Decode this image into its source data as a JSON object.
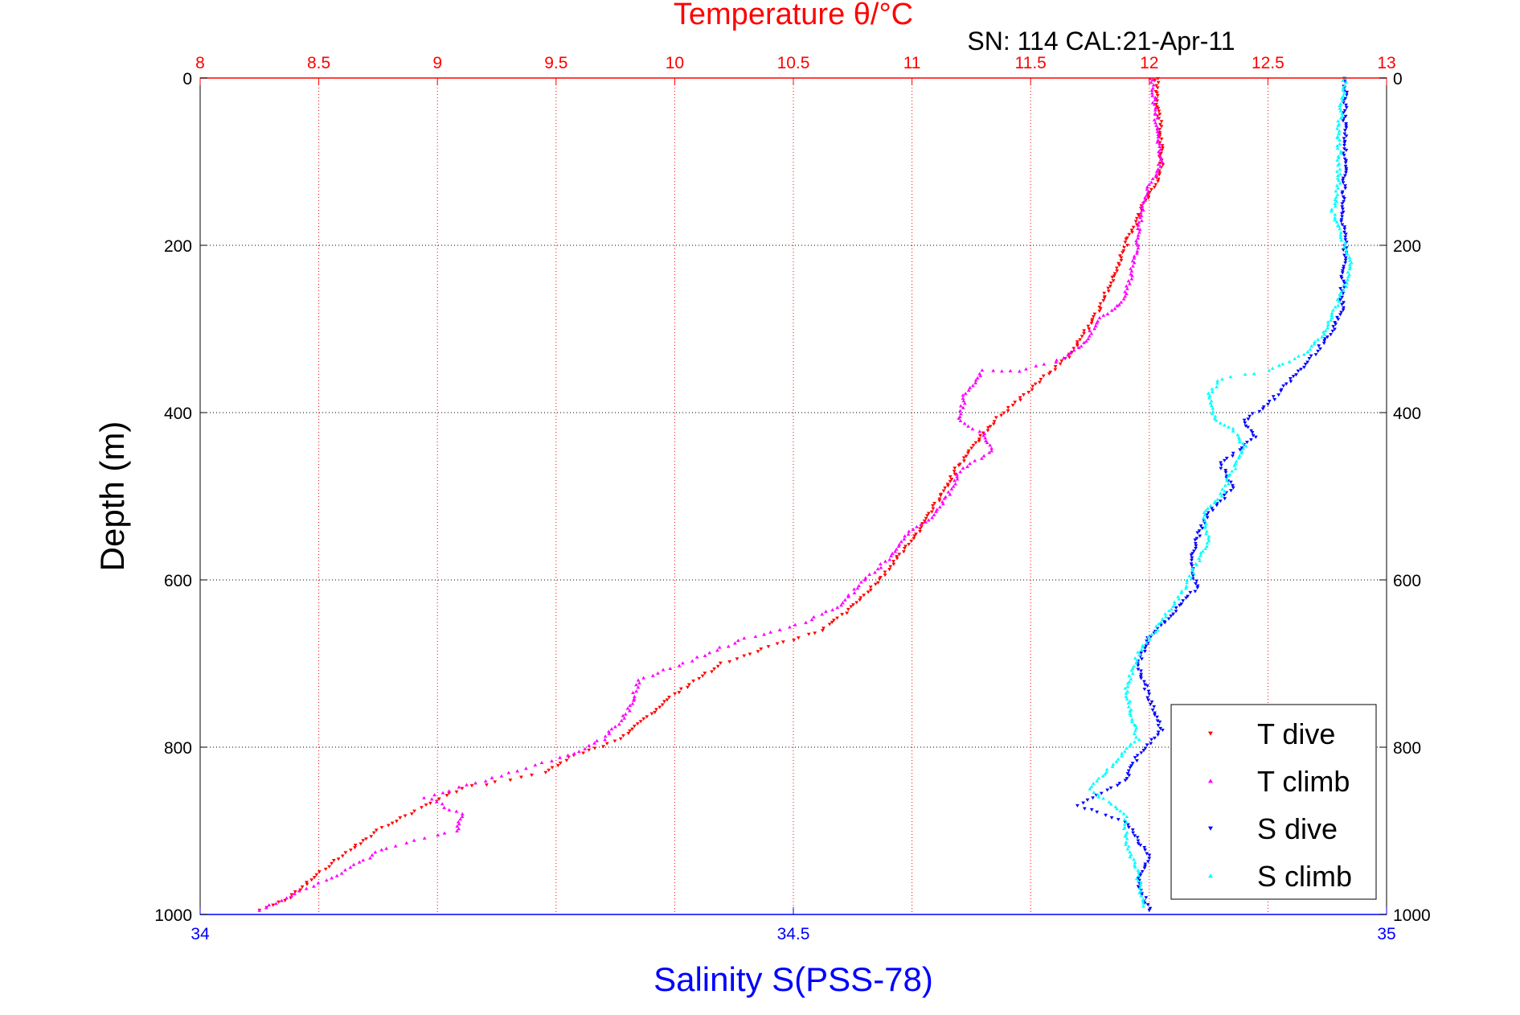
{
  "chart_data": {
    "type": "scatter",
    "title": "Temperature θ/°C",
    "subtitle": "SN: 114  CAL:21-Apr-11",
    "ylabel": "Depth (m)",
    "xlabel": "Salinity S(PSS-78)",
    "ylim": [
      0,
      1000
    ],
    "y_reversed": true,
    "grid": true,
    "legend_position": "bottom-right",
    "axes": {
      "temperature": {
        "label": "Temperature θ/°C",
        "position": "top",
        "range": [
          8,
          13
        ],
        "ticks": [
          "8",
          "8.5",
          "9",
          "9.5",
          "10",
          "10.5",
          "11",
          "11.5",
          "12",
          "12.5",
          "13"
        ],
        "color": "#ff0000"
      },
      "salinity": {
        "label": "Salinity S(PSS-78)",
        "position": "bottom",
        "range": [
          34,
          35
        ],
        "ticks": [
          "34",
          "34.5",
          "35"
        ],
        "color": "#0000ff"
      },
      "depth": {
        "label": "Depth (m)",
        "range": [
          0,
          1000
        ],
        "ticks": [
          "0",
          "200",
          "400",
          "600",
          "800",
          "1000"
        ],
        "color": "#000000"
      }
    },
    "series": [
      {
        "name": "T dive",
        "axis": "temperature",
        "color": "#ff0000",
        "marker": "down-triangle",
        "points": [
          [
            12.03,
            0
          ],
          [
            12.04,
            40
          ],
          [
            12.05,
            80
          ],
          [
            12.05,
            110
          ],
          [
            12.02,
            130
          ],
          [
            11.98,
            150
          ],
          [
            11.94,
            175
          ],
          [
            11.9,
            200
          ],
          [
            11.86,
            230
          ],
          [
            11.8,
            270
          ],
          [
            11.74,
            300
          ],
          [
            11.67,
            330
          ],
          [
            11.55,
            360
          ],
          [
            11.45,
            385
          ],
          [
            11.35,
            410
          ],
          [
            11.26,
            440
          ],
          [
            11.18,
            470
          ],
          [
            11.12,
            500
          ],
          [
            11.06,
            530
          ],
          [
            10.98,
            560
          ],
          [
            10.86,
            600
          ],
          [
            10.76,
            630
          ],
          [
            10.62,
            660
          ],
          [
            10.4,
            680
          ],
          [
            10.2,
            700
          ],
          [
            9.98,
            740
          ],
          [
            9.86,
            770
          ],
          [
            9.78,
            790
          ],
          [
            9.58,
            810
          ],
          [
            9.45,
            830
          ],
          [
            9.1,
            850
          ],
          [
            8.95,
            870
          ],
          [
            8.75,
            900
          ],
          [
            8.6,
            930
          ],
          [
            8.48,
            955
          ],
          [
            8.38,
            980
          ],
          [
            8.25,
            995
          ]
        ]
      },
      {
        "name": "T climb",
        "axis": "temperature",
        "color": "#ff00ff",
        "marker": "up-triangle",
        "points": [
          [
            12.01,
            0
          ],
          [
            12.03,
            50
          ],
          [
            12.05,
            100
          ],
          [
            12.0,
            130
          ],
          [
            11.97,
            155
          ],
          [
            11.95,
            200
          ],
          [
            11.92,
            240
          ],
          [
            11.88,
            270
          ],
          [
            11.78,
            290
          ],
          [
            11.72,
            320
          ],
          [
            11.6,
            340
          ],
          [
            11.45,
            350
          ],
          [
            11.3,
            350
          ],
          [
            11.22,
            380
          ],
          [
            11.2,
            410
          ],
          [
            11.3,
            425
          ],
          [
            11.34,
            445
          ],
          [
            11.2,
            470
          ],
          [
            11.15,
            500
          ],
          [
            11.08,
            525
          ],
          [
            10.98,
            545
          ],
          [
            10.9,
            575
          ],
          [
            10.8,
            600
          ],
          [
            10.7,
            630
          ],
          [
            10.55,
            650
          ],
          [
            10.3,
            670
          ],
          [
            10.12,
            690
          ],
          [
            9.85,
            720
          ],
          [
            9.8,
            760
          ],
          [
            9.7,
            790
          ],
          [
            9.55,
            810
          ],
          [
            9.2,
            840
          ],
          [
            8.95,
            860
          ],
          [
            9.1,
            880
          ],
          [
            9.08,
            900
          ],
          [
            8.78,
            920
          ],
          [
            8.6,
            950
          ],
          [
            8.4,
            975
          ],
          [
            8.25,
            995
          ]
        ]
      },
      {
        "name": "S dive",
        "axis": "salinity",
        "color": "#0000ff",
        "marker": "down-triangle",
        "points": [
          [
            34.965,
            0
          ],
          [
            34.965,
            60
          ],
          [
            34.965,
            120
          ],
          [
            34.962,
            160
          ],
          [
            34.965,
            200
          ],
          [
            34.963,
            240
          ],
          [
            34.962,
            280
          ],
          [
            34.955,
            300
          ],
          [
            34.94,
            330
          ],
          [
            34.92,
            360
          ],
          [
            34.9,
            390
          ],
          [
            34.88,
            410
          ],
          [
            34.89,
            430
          ],
          [
            34.86,
            460
          ],
          [
            34.87,
            490
          ],
          [
            34.85,
            520
          ],
          [
            34.84,
            550
          ],
          [
            34.835,
            580
          ],
          [
            34.84,
            610
          ],
          [
            34.82,
            640
          ],
          [
            34.8,
            670
          ],
          [
            34.79,
            700
          ],
          [
            34.8,
            740
          ],
          [
            34.81,
            780
          ],
          [
            34.79,
            810
          ],
          [
            34.78,
            840
          ],
          [
            34.74,
            870
          ],
          [
            34.78,
            890
          ],
          [
            34.8,
            930
          ],
          [
            34.79,
            960
          ],
          [
            34.8,
            995
          ]
        ]
      },
      {
        "name": "S climb",
        "axis": "salinity",
        "color": "#00ffff",
        "marker": "up-triangle",
        "points": [
          [
            34.965,
            0
          ],
          [
            34.96,
            60
          ],
          [
            34.96,
            120
          ],
          [
            34.955,
            160
          ],
          [
            34.97,
            220
          ],
          [
            34.965,
            250
          ],
          [
            34.955,
            280
          ],
          [
            34.945,
            310
          ],
          [
            34.93,
            330
          ],
          [
            34.9,
            350
          ],
          [
            34.86,
            360
          ],
          [
            34.85,
            380
          ],
          [
            34.855,
            410
          ],
          [
            34.87,
            420
          ],
          [
            34.88,
            440
          ],
          [
            34.87,
            470
          ],
          [
            34.86,
            500
          ],
          [
            34.845,
            520
          ],
          [
            34.85,
            550
          ],
          [
            34.84,
            580
          ],
          [
            34.83,
            610
          ],
          [
            34.81,
            650
          ],
          [
            34.79,
            690
          ],
          [
            34.78,
            730
          ],
          [
            34.785,
            760
          ],
          [
            34.79,
            790
          ],
          [
            34.77,
            820
          ],
          [
            34.75,
            850
          ],
          [
            34.78,
            880
          ],
          [
            34.78,
            910
          ],
          [
            34.79,
            950
          ],
          [
            34.795,
            990
          ]
        ]
      }
    ]
  }
}
